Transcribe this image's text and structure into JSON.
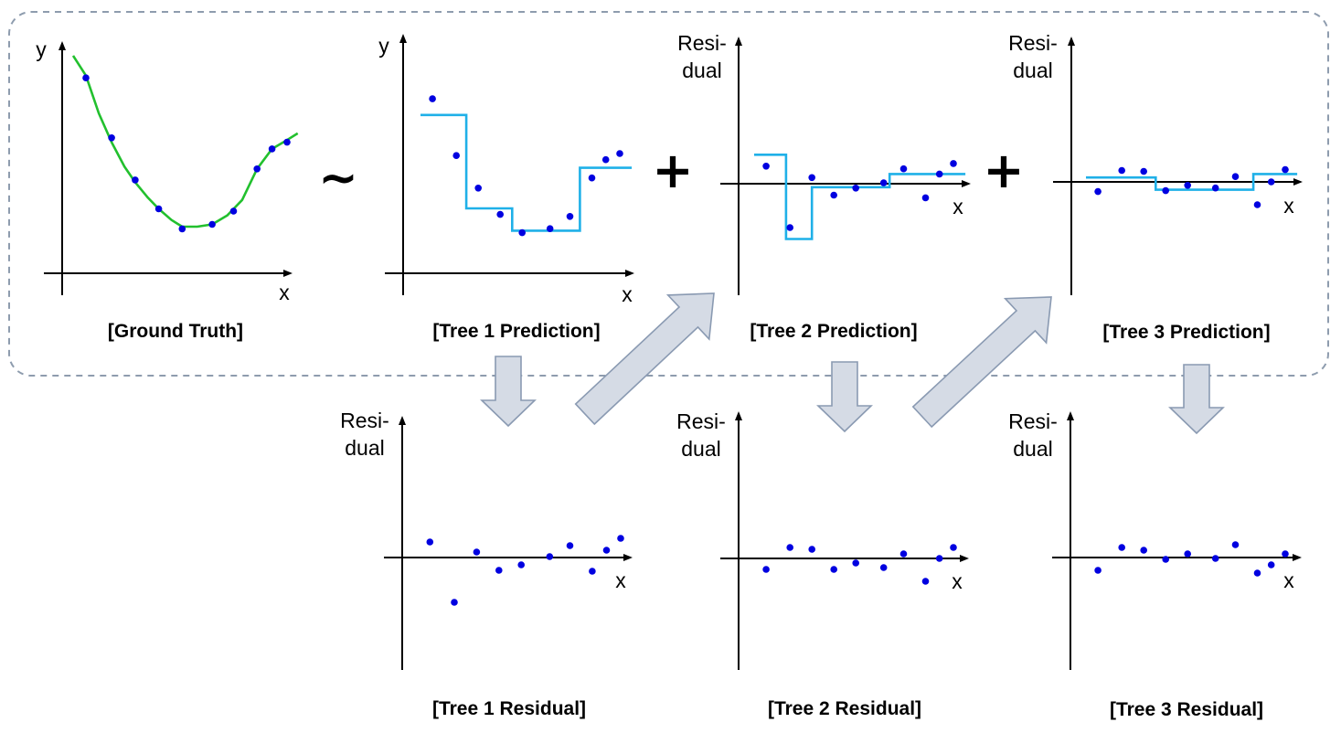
{
  "colors": {
    "point": "#0000e0",
    "ground_truth_curve": "#22c02e",
    "tree_prediction": "#1fb0e8",
    "flow_arrow_fill": "#d5dbe5",
    "flow_arrow_stroke": "#8a9ab2",
    "group_border": "#8e9cae"
  },
  "operators": {
    "approx": "~",
    "plus_1": "+",
    "plus_2": "+"
  },
  "panels": [
    {
      "id": "ground-truth",
      "caption": "[Ground Truth]",
      "y_label": "y",
      "x_label": "x",
      "points": [
        [
          0.06,
          0.88
        ],
        [
          0.18,
          0.61
        ],
        [
          0.29,
          0.42
        ],
        [
          0.4,
          0.29
        ],
        [
          0.51,
          0.2
        ],
        [
          0.65,
          0.22
        ],
        [
          0.75,
          0.28
        ],
        [
          0.86,
          0.47
        ],
        [
          0.93,
          0.56
        ],
        [
          1.0,
          0.59
        ]
      ],
      "curve": [
        [
          0.0,
          0.98
        ],
        [
          0.06,
          0.89
        ],
        [
          0.12,
          0.72
        ],
        [
          0.18,
          0.59
        ],
        [
          0.24,
          0.48
        ],
        [
          0.29,
          0.41
        ],
        [
          0.35,
          0.34
        ],
        [
          0.4,
          0.29
        ],
        [
          0.46,
          0.24
        ],
        [
          0.51,
          0.21
        ],
        [
          0.58,
          0.21
        ],
        [
          0.65,
          0.22
        ],
        [
          0.72,
          0.26
        ],
        [
          0.79,
          0.33
        ],
        [
          0.86,
          0.47
        ],
        [
          0.93,
          0.56
        ],
        [
          1.0,
          0.6
        ],
        [
          1.05,
          0.63
        ]
      ]
    },
    {
      "id": "tree-1-prediction",
      "caption": "[Tree 1 Prediction]",
      "y_label": "y",
      "x_label": "x",
      "points": [
        [
          0.06,
          0.86
        ],
        [
          0.18,
          0.58
        ],
        [
          0.29,
          0.42
        ],
        [
          0.4,
          0.29
        ],
        [
          0.51,
          0.2
        ],
        [
          0.65,
          0.22
        ],
        [
          0.75,
          0.28
        ],
        [
          0.86,
          0.47
        ],
        [
          0.93,
          0.56
        ],
        [
          1.0,
          0.59
        ]
      ],
      "steps": [
        [
          0.0,
          0.78
        ],
        [
          0.23,
          0.78
        ],
        [
          0.23,
          0.32
        ],
        [
          0.46,
          0.32
        ],
        [
          0.46,
          0.21
        ],
        [
          0.8,
          0.21
        ],
        [
          0.8,
          0.52
        ],
        [
          1.06,
          0.52
        ]
      ]
    },
    {
      "id": "tree-2-prediction",
      "caption": "[Tree 2 Prediction]",
      "y_label": "Resi-\ndual",
      "x_label": "x",
      "points": [
        [
          0.06,
          0.2
        ],
        [
          0.18,
          -0.5
        ],
        [
          0.29,
          0.07
        ],
        [
          0.4,
          -0.13
        ],
        [
          0.51,
          -0.05
        ],
        [
          0.65,
          0.01
        ],
        [
          0.75,
          0.17
        ],
        [
          0.86,
          -0.16
        ],
        [
          0.93,
          0.11
        ],
        [
          1.0,
          0.23
        ]
      ],
      "steps": [
        [
          0.0,
          0.33
        ],
        [
          0.16,
          0.33
        ],
        [
          0.16,
          -0.63
        ],
        [
          0.29,
          -0.63
        ],
        [
          0.29,
          -0.04
        ],
        [
          0.68,
          -0.04
        ],
        [
          0.68,
          0.11
        ],
        [
          1.06,
          0.11
        ]
      ]
    },
    {
      "id": "tree-3-prediction",
      "caption": "[Tree 3 Prediction]",
      "y_label": "Resi-\ndual",
      "x_label": "x",
      "points": [
        [
          0.06,
          -0.11
        ],
        [
          0.18,
          0.13
        ],
        [
          0.29,
          0.12
        ],
        [
          0.4,
          -0.1
        ],
        [
          0.51,
          -0.04
        ],
        [
          0.65,
          -0.07
        ],
        [
          0.75,
          0.06
        ],
        [
          0.86,
          -0.26
        ],
        [
          0.93,
          0.0
        ],
        [
          1.0,
          0.14
        ]
      ],
      "steps": [
        [
          0.0,
          0.05
        ],
        [
          0.35,
          0.05
        ],
        [
          0.35,
          -0.09
        ],
        [
          0.84,
          -0.09
        ],
        [
          0.84,
          0.09
        ],
        [
          1.06,
          0.09
        ]
      ]
    },
    {
      "id": "tree-1-residual",
      "caption": "[Tree 1 Residual]",
      "y_label": "Resi-\ndual",
      "x_label": "x",
      "points": [
        [
          0.06,
          0.17
        ],
        [
          0.18,
          -0.49
        ],
        [
          0.29,
          0.06
        ],
        [
          0.4,
          -0.14
        ],
        [
          0.51,
          -0.08
        ],
        [
          0.65,
          0.01
        ],
        [
          0.75,
          0.13
        ],
        [
          0.86,
          -0.15
        ],
        [
          0.93,
          0.08
        ],
        [
          1.0,
          0.21
        ]
      ]
    },
    {
      "id": "tree-2-residual",
      "caption": "[Tree 2 Residual]",
      "y_label": "Resi-\ndual",
      "x_label": "x",
      "points": [
        [
          0.06,
          -0.12
        ],
        [
          0.18,
          0.12
        ],
        [
          0.29,
          0.1
        ],
        [
          0.4,
          -0.12
        ],
        [
          0.51,
          -0.05
        ],
        [
          0.65,
          -0.1
        ],
        [
          0.75,
          0.05
        ],
        [
          0.86,
          -0.25
        ],
        [
          0.93,
          0.0
        ],
        [
          1.0,
          0.12
        ]
      ]
    },
    {
      "id": "tree-3-residual",
      "caption": "[Tree 3 Residual]",
      "y_label": "Resi-\ndual",
      "x_label": "x",
      "points": [
        [
          0.06,
          -0.14
        ],
        [
          0.18,
          0.11
        ],
        [
          0.29,
          0.08
        ],
        [
          0.4,
          -0.02
        ],
        [
          0.51,
          0.04
        ],
        [
          0.65,
          -0.01
        ],
        [
          0.75,
          0.14
        ],
        [
          0.86,
          -0.17
        ],
        [
          0.93,
          -0.08
        ],
        [
          1.0,
          0.04
        ]
      ]
    }
  ]
}
